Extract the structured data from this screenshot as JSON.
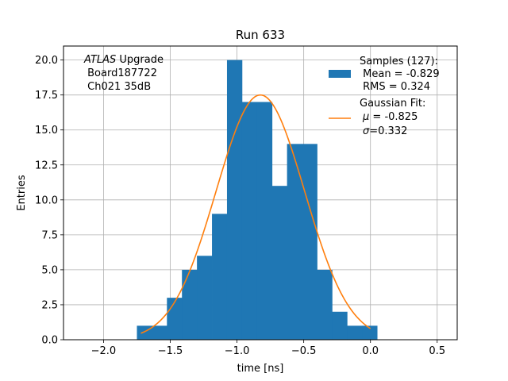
{
  "chart_data": {
    "type": "bar",
    "title": "Run 633",
    "xlabel": "time [ns]",
    "ylabel": "Entries",
    "xlim": [
      -2.3,
      0.65
    ],
    "ylim": [
      0,
      21
    ],
    "grid": true,
    "xticks": [
      -2.0,
      -1.5,
      -1.0,
      -0.5,
      0.0,
      0.5
    ],
    "xtick_labels": [
      "−2.0",
      "−1.5",
      "−1.0",
      "−0.5",
      "0.0",
      "0.5"
    ],
    "yticks": [
      0,
      2.5,
      5,
      7.5,
      10,
      12.5,
      15,
      17.5,
      20
    ],
    "ytick_labels": [
      "0.0",
      "2.5",
      "5.0",
      "7.5",
      "10.0",
      "12.5",
      "15.0",
      "17.5",
      "20.0"
    ],
    "histogram": {
      "name": "Samples (127):",
      "bin_edges": [
        -1.75,
        -1.6375,
        -1.525,
        -1.4125,
        -1.3,
        -1.1875,
        -1.075,
        -0.9625,
        -0.85,
        -0.7375,
        -0.625,
        -0.5125,
        -0.4,
        -0.2875,
        -0.175,
        -0.0625,
        0.05
      ],
      "counts": [
        1,
        1,
        3,
        5,
        6,
        9,
        20,
        17,
        17,
        11,
        14,
        14,
        5,
        2,
        1,
        1
      ],
      "color": "#1f77b4"
    },
    "fit": {
      "name": "Gaussian Fit:",
      "mu": -0.825,
      "sigma": 0.332,
      "amplitude": 17.5,
      "x_range": [
        -1.72,
        0.0
      ],
      "color": "#ff7f0e"
    },
    "legend": {
      "placement": "top-right",
      "samples_lines": [
        "Samples (127):",
        " Mean = -0.829",
        " RMS = 0.324"
      ],
      "fit_title": "Gaussian Fit:",
      "fit_mu_symbol": "μ",
      "fit_mu_text": " = -0.825",
      "fit_sigma_symbol": "σ",
      "fit_sigma_text": "=0.332"
    },
    "annotation": {
      "experiment": "ATLAS",
      "experiment_suffix": " Upgrade",
      "board": " Board187722",
      "channel": " Ch021 35dB"
    }
  }
}
